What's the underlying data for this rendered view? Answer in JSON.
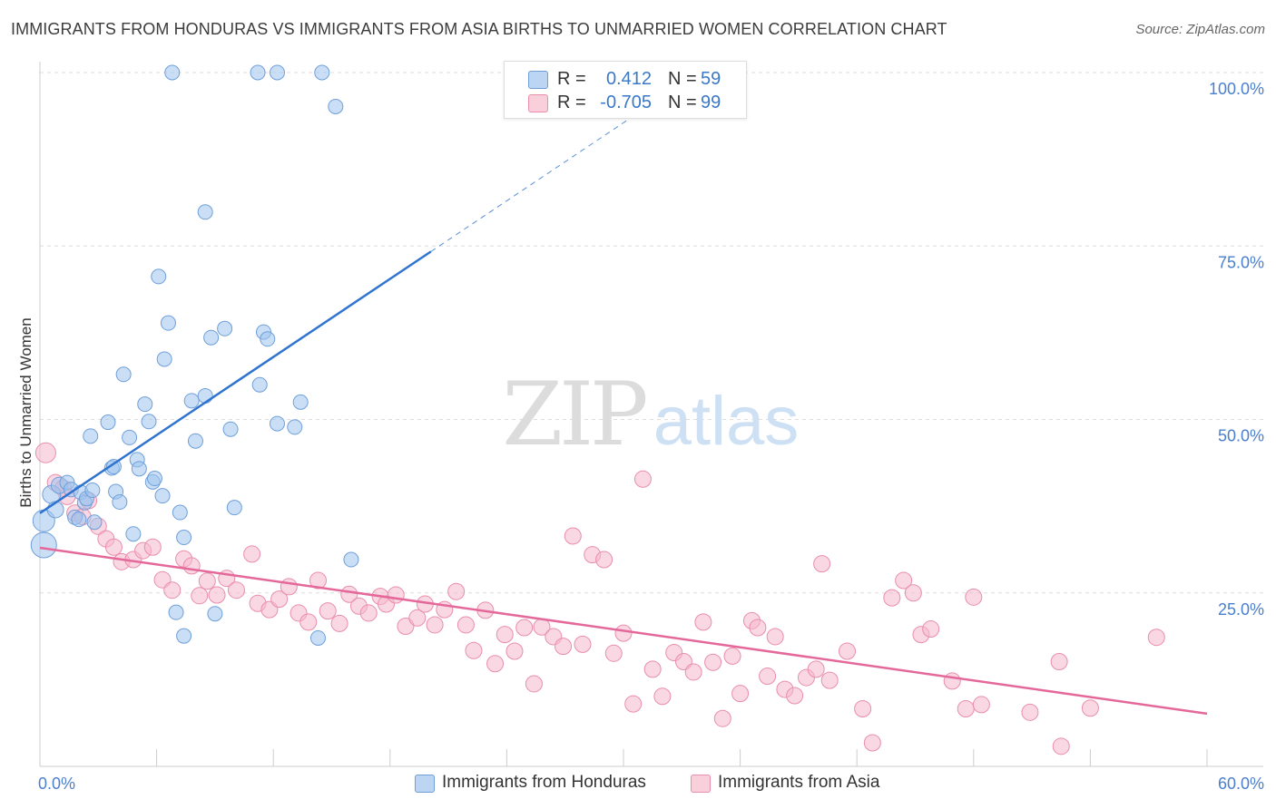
{
  "title": "IMMIGRANTS FROM HONDURAS VS IMMIGRANTS FROM ASIA BIRTHS TO UNMARRIED WOMEN CORRELATION CHART",
  "source": "Source: ZipAtlas.com",
  "watermark": {
    "zip": "ZIP",
    "atlas": "atlas"
  },
  "colors": {
    "blue_fill": "#9ec4ee",
    "blue_stroke": "#6f9fd9",
    "blue_line": "#2f74d0",
    "pink_fill": "#f5b8cc",
    "pink_stroke": "#e98eab",
    "pink_line": "#e4689a",
    "axis_label": "#4a7fcf",
    "grid": "#dddddd"
  },
  "legend": {
    "rows": [
      {
        "r_label": "R =",
        "r_value": "0.412",
        "n_label": "N =",
        "n_value": "59"
      },
      {
        "r_label": "R =",
        "r_value": "-0.705",
        "n_label": "N =",
        "n_value": "99"
      }
    ]
  },
  "bottom_legend": {
    "series1": "Immigrants from Honduras",
    "series2": "Immigrants from Asia"
  },
  "chart_data": {
    "type": "scatter",
    "title": "IMMIGRANTS FROM HONDURAS VS IMMIGRANTS FROM ASIA BIRTHS TO UNMARRIED WOMEN CORRELATION CHART",
    "xlabel": "",
    "ylabel": "Births to Unmarried Women",
    "xlim": [
      0,
      60
    ],
    "ylim": [
      0,
      105
    ],
    "x_tick_labels": [
      "0.0%",
      "60.0%"
    ],
    "y_ticks": [
      25,
      50,
      75,
      100
    ],
    "y_tick_labels": [
      "25.0%",
      "50.0%",
      "75.0%",
      "100.0%"
    ],
    "grid": true,
    "series": [
      {
        "name": "Immigrants from Honduras",
        "color": "blue",
        "r": 0.412,
        "n": 59,
        "trend": {
          "x0": 0,
          "y0": 36.5,
          "x1": 20.1,
          "y1": 74.2,
          "dash_to_x": 32.5
        },
        "points": [
          [
            0.2,
            31.9,
            14
          ],
          [
            0.2,
            35.4,
            12
          ],
          [
            0.6,
            39.2,
            10
          ],
          [
            0.8,
            37.0,
            9
          ],
          [
            1.0,
            40.5,
            9
          ],
          [
            1.4,
            40.9,
            8
          ],
          [
            1.6,
            39.9,
            8
          ],
          [
            1.8,
            35.9,
            8
          ],
          [
            2.0,
            35.6,
            8
          ],
          [
            2.1,
            39.5,
            8
          ],
          [
            2.3,
            38.0,
            8
          ],
          [
            2.4,
            38.6,
            8
          ],
          [
            2.6,
            47.6,
            8
          ],
          [
            2.7,
            39.8,
            8
          ],
          [
            2.8,
            35.2,
            8
          ],
          [
            3.5,
            49.6,
            8
          ],
          [
            3.7,
            43.0,
            8
          ],
          [
            3.8,
            43.2,
            8
          ],
          [
            3.9,
            39.6,
            8
          ],
          [
            4.1,
            38.1,
            8
          ],
          [
            4.3,
            56.5,
            8
          ],
          [
            4.6,
            47.4,
            8
          ],
          [
            4.8,
            33.5,
            8
          ],
          [
            5.0,
            44.2,
            8
          ],
          [
            5.1,
            42.9,
            8
          ],
          [
            5.4,
            52.2,
            8
          ],
          [
            5.6,
            49.7,
            8
          ],
          [
            5.8,
            41.0,
            8
          ],
          [
            5.9,
            41.5,
            8
          ],
          [
            6.1,
            70.6,
            8
          ],
          [
            6.3,
            39.0,
            8
          ],
          [
            6.4,
            58.7,
            8
          ],
          [
            6.6,
            63.9,
            8
          ],
          [
            6.8,
            100.0,
            8
          ],
          [
            7.0,
            22.2,
            8
          ],
          [
            7.2,
            36.6,
            8
          ],
          [
            7.4,
            33.0,
            8
          ],
          [
            7.4,
            18.8,
            8
          ],
          [
            7.8,
            52.7,
            8
          ],
          [
            8.0,
            46.9,
            8
          ],
          [
            8.5,
            53.4,
            8
          ],
          [
            8.5,
            79.9,
            8
          ],
          [
            8.8,
            61.8,
            8
          ],
          [
            9.0,
            22.0,
            8
          ],
          [
            9.5,
            63.1,
            8
          ],
          [
            9.8,
            48.6,
            8
          ],
          [
            10.0,
            37.3,
            8
          ],
          [
            11.2,
            100.0,
            8
          ],
          [
            11.3,
            55.0,
            8
          ],
          [
            11.5,
            62.6,
            8
          ],
          [
            11.7,
            61.6,
            8
          ],
          [
            12.2,
            100.0,
            8
          ],
          [
            12.2,
            49.4,
            8
          ],
          [
            13.1,
            48.9,
            8
          ],
          [
            13.4,
            52.5,
            8
          ],
          [
            14.3,
            18.5,
            8
          ],
          [
            14.5,
            100.0,
            8
          ],
          [
            15.2,
            95.1,
            8
          ],
          [
            16.0,
            29.8,
            8
          ]
        ]
      },
      {
        "name": "Immigrants from Asia",
        "color": "pink",
        "r": -0.705,
        "n": 99,
        "trend": {
          "x0": 0,
          "y0": 31.5,
          "x1": 60,
          "y1": 7.6
        },
        "points": [
          [
            0.3,
            45.2,
            11
          ],
          [
            0.8,
            40.9,
            9
          ],
          [
            1.2,
            40.1,
            9
          ],
          [
            1.4,
            38.9,
            9
          ],
          [
            1.8,
            36.5,
            9
          ],
          [
            2.2,
            36.0,
            9
          ],
          [
            2.5,
            38.3,
            9
          ],
          [
            3.0,
            34.6,
            9
          ],
          [
            3.4,
            32.8,
            9
          ],
          [
            3.8,
            31.6,
            9
          ],
          [
            4.2,
            29.5,
            9
          ],
          [
            4.8,
            29.8,
            9
          ],
          [
            5.3,
            31.1,
            9
          ],
          [
            5.8,
            31.6,
            9
          ],
          [
            6.3,
            26.9,
            9
          ],
          [
            6.8,
            25.4,
            9
          ],
          [
            7.4,
            29.9,
            9
          ],
          [
            7.8,
            28.9,
            9
          ],
          [
            8.2,
            24.6,
            9
          ],
          [
            8.6,
            26.7,
            9
          ],
          [
            9.1,
            24.7,
            9
          ],
          [
            9.6,
            27.1,
            9
          ],
          [
            10.1,
            25.4,
            9
          ],
          [
            10.9,
            30.6,
            9
          ],
          [
            11.2,
            23.5,
            9
          ],
          [
            11.8,
            22.6,
            9
          ],
          [
            12.3,
            24.1,
            9
          ],
          [
            12.8,
            25.9,
            9
          ],
          [
            13.3,
            22.1,
            9
          ],
          [
            13.8,
            20.8,
            9
          ],
          [
            14.3,
            26.8,
            9
          ],
          [
            14.8,
            22.4,
            9
          ],
          [
            15.4,
            20.6,
            9
          ],
          [
            15.9,
            24.8,
            9
          ],
          [
            16.4,
            23.1,
            9
          ],
          [
            16.9,
            22.1,
            9
          ],
          [
            17.5,
            24.5,
            9
          ],
          [
            17.8,
            23.4,
            9
          ],
          [
            18.3,
            24.7,
            9
          ],
          [
            18.8,
            20.2,
            9
          ],
          [
            19.4,
            21.4,
            9
          ],
          [
            19.8,
            23.4,
            9
          ],
          [
            20.3,
            20.4,
            9
          ],
          [
            20.8,
            22.6,
            9
          ],
          [
            21.4,
            25.2,
            9
          ],
          [
            21.9,
            20.4,
            9
          ],
          [
            22.3,
            16.7,
            9
          ],
          [
            22.9,
            22.5,
            9
          ],
          [
            23.4,
            14.8,
            9
          ],
          [
            23.9,
            19.0,
            9
          ],
          [
            24.4,
            16.6,
            9
          ],
          [
            24.9,
            20.0,
            9
          ],
          [
            25.4,
            11.9,
            9
          ],
          [
            25.8,
            20.1,
            9
          ],
          [
            26.4,
            18.7,
            9
          ],
          [
            26.9,
            17.3,
            9
          ],
          [
            27.4,
            33.2,
            9
          ],
          [
            27.9,
            17.6,
            9
          ],
          [
            28.4,
            30.5,
            9
          ],
          [
            29.0,
            29.8,
            9
          ],
          [
            29.5,
            16.3,
            9
          ],
          [
            30.0,
            19.2,
            9
          ],
          [
            30.5,
            9.0,
            9
          ],
          [
            31.0,
            41.4,
            9
          ],
          [
            31.5,
            14.0,
            9
          ],
          [
            32.0,
            10.1,
            9
          ],
          [
            32.6,
            16.4,
            9
          ],
          [
            33.1,
            15.1,
            9
          ],
          [
            33.6,
            13.6,
            9
          ],
          [
            34.1,
            20.8,
            9
          ],
          [
            34.6,
            15.0,
            9
          ],
          [
            35.1,
            6.9,
            9
          ],
          [
            35.6,
            15.9,
            9
          ],
          [
            36.0,
            10.5,
            9
          ],
          [
            36.6,
            21.0,
            9
          ],
          [
            36.9,
            20.0,
            9
          ],
          [
            37.4,
            13.0,
            9
          ],
          [
            37.8,
            18.7,
            9
          ],
          [
            38.3,
            11.1,
            9
          ],
          [
            38.8,
            10.2,
            9
          ],
          [
            39.4,
            12.8,
            9
          ],
          [
            39.9,
            14.0,
            9
          ],
          [
            40.2,
            29.2,
            9
          ],
          [
            40.6,
            12.4,
            9
          ],
          [
            41.5,
            16.6,
            9
          ],
          [
            42.3,
            8.3,
            9
          ],
          [
            42.8,
            3.4,
            9
          ],
          [
            43.8,
            24.3,
            9
          ],
          [
            44.4,
            26.8,
            9
          ],
          [
            44.9,
            25.0,
            9
          ],
          [
            45.3,
            19.0,
            9
          ],
          [
            45.8,
            19.8,
            9
          ],
          [
            46.9,
            12.3,
            9
          ],
          [
            47.6,
            8.3,
            9
          ],
          [
            48.0,
            24.4,
            9
          ],
          [
            48.4,
            8.9,
            9
          ],
          [
            50.9,
            7.8,
            9
          ],
          [
            52.4,
            15.1,
            9
          ],
          [
            52.5,
            2.9,
            9
          ],
          [
            54.0,
            8.4,
            9
          ],
          [
            57.4,
            18.6,
            9
          ]
        ]
      }
    ]
  }
}
